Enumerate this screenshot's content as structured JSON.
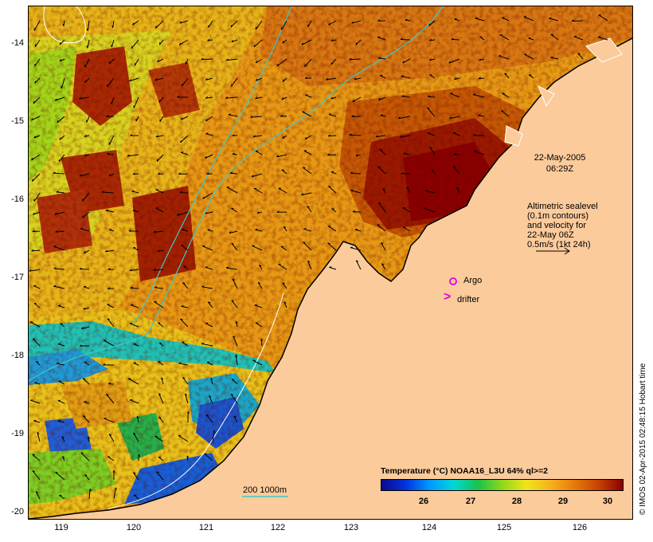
{
  "map": {
    "lat_ticks": [
      "-14",
      "-15",
      "-16",
      "-17",
      "-18",
      "-19",
      "-20"
    ],
    "lon_ticks": [
      "119",
      "120",
      "121",
      "122",
      "123",
      "124",
      "125",
      "126"
    ],
    "timestamp_line1": "22-May-2005",
    "timestamp_line2": "06:29Z",
    "altimetry_note": [
      "Altimetric sealevel",
      "(0.1m contours)",
      "and velocity for",
      "22-May 06Z",
      "0.5m/s (1kt 24h)"
    ],
    "argo_label": "Argo",
    "drifter_label": "drifter",
    "drifter_symbol": ">",
    "isobath_label": "200  1000m",
    "colorbar_title": "Temperature (°C) NOAA16_L3U 64% ql>=2",
    "colorbar_ticks": [
      "26",
      "27",
      "28",
      "29",
      "30"
    ],
    "credit": "© IMOS 02-Apr-2015 02:48:15 Hobart time",
    "colors": {
      "land": "#fccb9b",
      "hot": "#8a0000",
      "warm": "#e08a10",
      "mid": "#f0e41c",
      "cool": "#19c24a",
      "cold": "#0033dd",
      "isobath": "#40c8c8",
      "marker": "#e000e0"
    }
  }
}
